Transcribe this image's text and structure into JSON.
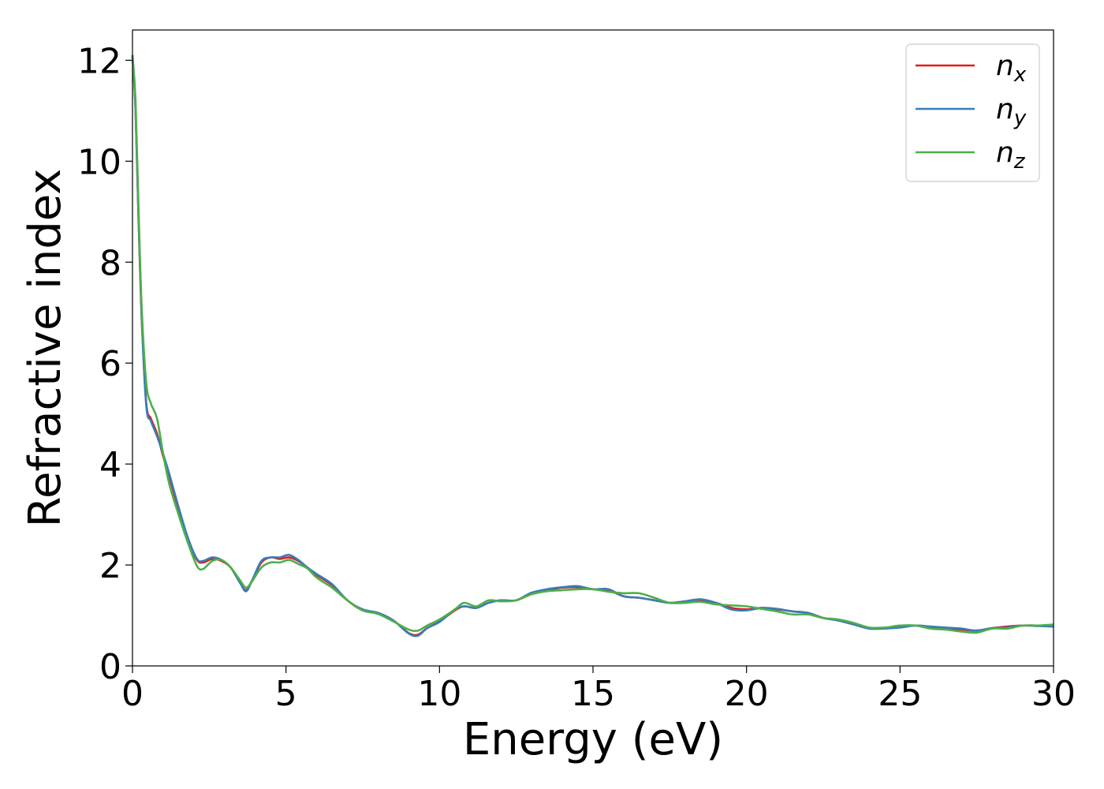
{
  "chart_data": {
    "type": "line",
    "xlabel": "Energy (eV)",
    "ylabel": "Refractive index",
    "xlim": [
      0,
      30
    ],
    "ylim": [
      0,
      12.6
    ],
    "xticks": [
      0,
      5,
      10,
      15,
      20,
      25,
      30
    ],
    "yticks": [
      0,
      2,
      4,
      6,
      8,
      10,
      12
    ],
    "grid": false,
    "legend_position": "top-right",
    "series": [
      {
        "name": "n",
        "subscript": "x",
        "color": "#e41a1c",
        "x": [
          0,
          0.1,
          0.2,
          0.3,
          0.45,
          0.6,
          0.8,
          1.0,
          1.2,
          1.5,
          1.8,
          2.1,
          2.3,
          2.6,
          2.9,
          3.2,
          3.5,
          3.7,
          3.9,
          4.2,
          4.5,
          4.8,
          5.1,
          5.4,
          5.7,
          6.0,
          6.5,
          7.0,
          7.5,
          8.0,
          8.5,
          9.0,
          9.3,
          9.6,
          10.0,
          10.5,
          10.8,
          11.2,
          11.6,
          12.0,
          12.5,
          13.0,
          13.5,
          14.0,
          14.5,
          15.0,
          15.5,
          16.0,
          16.5,
          17.0,
          17.5,
          18.0,
          18.5,
          19.0,
          19.5,
          20.0,
          20.5,
          21.0,
          21.5,
          22.0,
          22.5,
          23.0,
          23.5,
          24.0,
          24.5,
          25.0,
          25.5,
          26.0,
          26.5,
          27.0,
          27.5,
          28.0,
          28.5,
          29.0,
          29.5,
          30.0
        ],
        "y": [
          12.1,
          11.0,
          8.8,
          6.9,
          5.2,
          4.9,
          4.6,
          4.15,
          3.75,
          3.1,
          2.5,
          2.1,
          2.05,
          2.12,
          2.08,
          1.95,
          1.65,
          1.5,
          1.7,
          2.05,
          2.15,
          2.12,
          2.15,
          2.08,
          1.95,
          1.8,
          1.6,
          1.3,
          1.1,
          1.05,
          0.9,
          0.65,
          0.62,
          0.75,
          0.88,
          1.1,
          1.18,
          1.15,
          1.25,
          1.3,
          1.3,
          1.45,
          1.5,
          1.55,
          1.56,
          1.52,
          1.5,
          1.38,
          1.35,
          1.3,
          1.25,
          1.28,
          1.3,
          1.25,
          1.15,
          1.12,
          1.15,
          1.12,
          1.08,
          1.05,
          0.95,
          0.9,
          0.82,
          0.75,
          0.75,
          0.78,
          0.8,
          0.77,
          0.74,
          0.72,
          0.7,
          0.75,
          0.78,
          0.8,
          0.8,
          0.78
        ]
      },
      {
        "name": "n",
        "subscript": "y",
        "color": "#377eb8",
        "x": [
          0,
          0.1,
          0.2,
          0.3,
          0.45,
          0.6,
          0.8,
          1.0,
          1.2,
          1.5,
          1.8,
          2.1,
          2.3,
          2.6,
          2.9,
          3.2,
          3.5,
          3.7,
          3.9,
          4.2,
          4.5,
          4.8,
          5.1,
          5.4,
          5.7,
          6.0,
          6.5,
          7.0,
          7.5,
          8.0,
          8.5,
          9.0,
          9.3,
          9.6,
          10.0,
          10.5,
          10.8,
          11.2,
          11.6,
          12.0,
          12.5,
          13.0,
          13.5,
          14.0,
          14.5,
          15.0,
          15.5,
          16.0,
          16.5,
          17.0,
          17.5,
          18.0,
          18.5,
          19.0,
          19.5,
          20.0,
          20.5,
          21.0,
          21.5,
          22.0,
          22.5,
          23.0,
          23.5,
          24.0,
          24.5,
          25.0,
          25.5,
          26.0,
          26.5,
          27.0,
          27.5,
          28.0,
          28.5,
          29.0,
          29.5,
          30.0
        ],
        "y": [
          12.1,
          11.0,
          8.8,
          6.9,
          5.15,
          4.85,
          4.55,
          4.2,
          3.8,
          3.15,
          2.55,
          2.12,
          2.08,
          2.15,
          2.1,
          1.95,
          1.65,
          1.48,
          1.7,
          2.08,
          2.15,
          2.15,
          2.2,
          2.1,
          1.95,
          1.82,
          1.62,
          1.3,
          1.12,
          1.05,
          0.9,
          0.64,
          0.6,
          0.75,
          0.87,
          1.12,
          1.18,
          1.15,
          1.25,
          1.3,
          1.3,
          1.45,
          1.52,
          1.56,
          1.58,
          1.52,
          1.52,
          1.38,
          1.35,
          1.3,
          1.25,
          1.28,
          1.32,
          1.25,
          1.12,
          1.1,
          1.15,
          1.13,
          1.08,
          1.05,
          0.95,
          0.9,
          0.82,
          0.74,
          0.74,
          0.76,
          0.8,
          0.78,
          0.76,
          0.74,
          0.7,
          0.75,
          0.76,
          0.8,
          0.79,
          0.78
        ]
      },
      {
        "name": "n",
        "subscript": "z",
        "color": "#4daf4a",
        "x": [
          0,
          0.1,
          0.2,
          0.3,
          0.45,
          0.6,
          0.8,
          1.0,
          1.2,
          1.5,
          1.8,
          2.1,
          2.3,
          2.6,
          2.9,
          3.2,
          3.5,
          3.7,
          3.9,
          4.2,
          4.5,
          4.8,
          5.1,
          5.4,
          5.7,
          6.0,
          6.5,
          7.0,
          7.5,
          8.0,
          8.5,
          9.0,
          9.3,
          9.6,
          10.0,
          10.5,
          10.8,
          11.2,
          11.6,
          12.0,
          12.5,
          13.0,
          13.5,
          14.0,
          14.5,
          15.0,
          15.5,
          16.0,
          16.5,
          17.0,
          17.5,
          18.0,
          18.5,
          19.0,
          19.5,
          20.0,
          20.5,
          21.0,
          21.5,
          22.0,
          22.5,
          23.0,
          23.5,
          24.0,
          24.5,
          25.0,
          25.5,
          26.0,
          26.5,
          27.0,
          27.5,
          28.0,
          28.5,
          29.0,
          29.5,
          30.0
        ],
        "y": [
          12.1,
          11.2,
          9.0,
          7.1,
          5.6,
          5.2,
          4.9,
          4.2,
          3.6,
          3.0,
          2.45,
          1.98,
          1.92,
          2.08,
          2.1,
          1.95,
          1.7,
          1.55,
          1.68,
          1.95,
          2.05,
          2.05,
          2.1,
          2.02,
          1.93,
          1.75,
          1.55,
          1.3,
          1.1,
          1.03,
          0.88,
          0.72,
          0.7,
          0.8,
          0.92,
          1.12,
          1.25,
          1.18,
          1.3,
          1.28,
          1.3,
          1.42,
          1.48,
          1.5,
          1.52,
          1.52,
          1.47,
          1.44,
          1.44,
          1.35,
          1.25,
          1.25,
          1.27,
          1.22,
          1.2,
          1.18,
          1.13,
          1.08,
          1.02,
          1.02,
          0.95,
          0.92,
          0.85,
          0.76,
          0.76,
          0.8,
          0.8,
          0.74,
          0.72,
          0.68,
          0.66,
          0.74,
          0.74,
          0.8,
          0.8,
          0.82
        ]
      }
    ]
  }
}
